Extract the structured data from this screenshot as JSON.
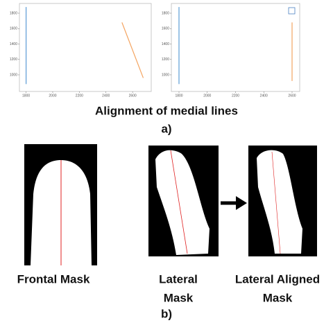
{
  "chart_data": [
    {
      "type": "line",
      "series": [
        {
          "color": "#5b9bd5",
          "x": [
            1800,
            1800
          ],
          "values": [
            1880,
            880
          ]
        },
        {
          "color": "#f4a460",
          "x": [
            2520,
            2680
          ],
          "values": [
            1680,
            960
          ]
        }
      ],
      "xlim": [
        1750,
        2740
      ],
      "xticks": [
        1800,
        2000,
        2200,
        2400,
        2600
      ],
      "ylim": [
        784,
        1926
      ],
      "yticks": [
        1000,
        1200,
        1400,
        1600,
        1800
      ]
    },
    {
      "type": "line",
      "series": [
        {
          "color": "#5b9bd5",
          "x": [
            1800,
            1800
          ],
          "values": [
            1880,
            880
          ]
        },
        {
          "color": "#f4a460",
          "x": [
            2600,
            2600
          ],
          "values": [
            1680,
            920
          ]
        }
      ],
      "xlim": [
        1746,
        2654
      ],
      "xticks": [
        1800,
        2000,
        2200,
        2400,
        2600
      ],
      "ylim": [
        784,
        1926
      ],
      "yticks": [
        1000,
        1200,
        1400,
        1600,
        1800
      ]
    }
  ],
  "figure": {
    "caption_a": "Alignment of medial lines",
    "label_a": "a)",
    "masks": [
      [
        "Frontal Mask"
      ],
      [
        "Lateral",
        "Mask"
      ],
      [
        "Lateral Aligned",
        "Mask"
      ]
    ],
    "label_b": "b)"
  }
}
